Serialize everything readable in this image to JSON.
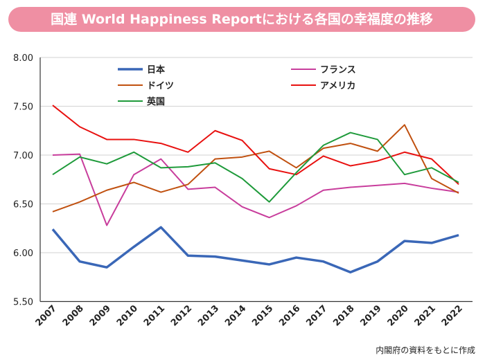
{
  "chart_data": {
    "type": "line",
    "title": "国連 World Happiness Reportにおける各国の幸福度の推移",
    "source": "内閣府の資料をもとに作成",
    "x": [
      "2007",
      "2008",
      "2009",
      "2010",
      "2011",
      "2012",
      "2013",
      "2014",
      "2015",
      "2016",
      "2017",
      "2018",
      "2019",
      "2020",
      "2021",
      "2022"
    ],
    "ylim": [
      5.5,
      8.0
    ],
    "yticks": [
      "5.50",
      "6.00",
      "6.50",
      "7.00",
      "7.50",
      "8.00"
    ],
    "grid": true,
    "legend_placement": "top-inside",
    "series": [
      {
        "name": "日本",
        "color": "#3a67b7",
        "width": 3.5,
        "values": [
          6.24,
          5.91,
          5.85,
          6.06,
          6.26,
          5.97,
          5.96,
          5.92,
          5.88,
          5.95,
          5.91,
          5.8,
          5.91,
          6.12,
          6.1,
          6.18
        ]
      },
      {
        "name": "フランス",
        "color": "#c83d9c",
        "width": 2,
        "values": [
          7.0,
          7.01,
          6.28,
          6.8,
          6.96,
          6.65,
          6.67,
          6.47,
          6.36,
          6.48,
          6.64,
          6.67,
          6.69,
          6.71,
          6.66,
          6.62
        ]
      },
      {
        "name": "ドイツ",
        "color": "#c0500f",
        "width": 2,
        "values": [
          6.42,
          6.52,
          6.64,
          6.72,
          6.62,
          6.7,
          6.96,
          6.98,
          7.04,
          6.87,
          7.07,
          7.12,
          7.04,
          7.31,
          6.76,
          6.61
        ]
      },
      {
        "name": "アメリカ",
        "color": "#e8100f",
        "width": 2,
        "values": [
          7.51,
          7.29,
          7.16,
          7.16,
          7.12,
          7.03,
          7.25,
          7.15,
          6.86,
          6.8,
          6.99,
          6.89,
          6.94,
          7.03,
          6.96,
          6.7
        ]
      },
      {
        "name": "英国",
        "color": "#1e9a3a",
        "width": 2,
        "values": [
          6.8,
          6.98,
          6.91,
          7.03,
          6.87,
          6.88,
          6.92,
          6.76,
          6.52,
          6.82,
          7.1,
          7.23,
          7.16,
          6.8,
          6.87,
          6.72
        ]
      }
    ]
  }
}
